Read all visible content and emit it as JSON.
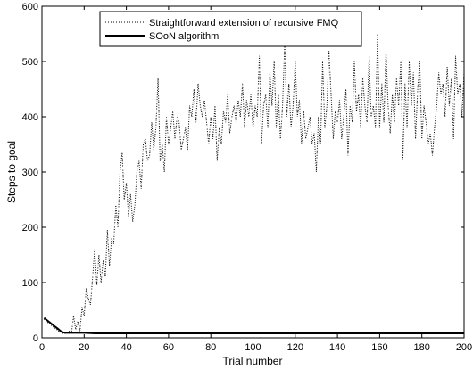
{
  "chart_data": {
    "type": "line",
    "title": "",
    "xlabel": "Trial number",
    "ylabel": "Steps to goal",
    "xlim": [
      0,
      200
    ],
    "ylim": [
      0,
      600
    ],
    "xticks": [
      0,
      20,
      40,
      60,
      80,
      100,
      120,
      140,
      160,
      180,
      200
    ],
    "yticks": [
      0,
      100,
      200,
      300,
      400,
      500,
      600
    ],
    "grid": false,
    "legend_position": "top-left",
    "series": [
      {
        "name": "Straightforward extension of recursive FMQ",
        "style": "dotted",
        "color": "#000000",
        "x": [
          1,
          2,
          3,
          4,
          5,
          6,
          7,
          8,
          9,
          10,
          11,
          12,
          13,
          14,
          15,
          16,
          17,
          18,
          19,
          20,
          21,
          22,
          23,
          24,
          25,
          26,
          27,
          28,
          29,
          30,
          31,
          32,
          33,
          34,
          35,
          36,
          37,
          38,
          39,
          40,
          41,
          42,
          43,
          44,
          45,
          46,
          47,
          48,
          49,
          50,
          51,
          52,
          53,
          54,
          55,
          56,
          57,
          58,
          59,
          60,
          61,
          62,
          63,
          64,
          65,
          66,
          67,
          68,
          69,
          70,
          71,
          72,
          73,
          74,
          75,
          76,
          77,
          78,
          79,
          80,
          81,
          82,
          83,
          84,
          85,
          86,
          87,
          88,
          89,
          90,
          91,
          92,
          93,
          94,
          95,
          96,
          97,
          98,
          99,
          100,
          101,
          102,
          103,
          104,
          105,
          106,
          107,
          108,
          109,
          110,
          111,
          112,
          113,
          114,
          115,
          116,
          117,
          118,
          119,
          120,
          121,
          122,
          123,
          124,
          125,
          126,
          127,
          128,
          129,
          130,
          131,
          132,
          133,
          134,
          135,
          136,
          137,
          138,
          139,
          140,
          141,
          142,
          143,
          144,
          145,
          146,
          147,
          148,
          149,
          150,
          151,
          152,
          153,
          154,
          155,
          156,
          157,
          158,
          159,
          160,
          161,
          162,
          163,
          164,
          165,
          166,
          167,
          168,
          169,
          170,
          171,
          172,
          173,
          174,
          175,
          176,
          177,
          178,
          179,
          180,
          181,
          182,
          183,
          184,
          185,
          186,
          187,
          188,
          189,
          190,
          191,
          192,
          193,
          194,
          195,
          196,
          197,
          198,
          199,
          200
        ],
        "y": [
          34,
          30,
          27,
          24,
          21,
          18,
          15,
          12,
          10,
          8,
          8,
          10,
          12,
          9,
          40,
          15,
          30,
          12,
          55,
          40,
          90,
          70,
          60,
          110,
          160,
          95,
          150,
          100,
          140,
          110,
          195,
          130,
          180,
          170,
          240,
          200,
          300,
          335,
          250,
          280,
          220,
          260,
          210,
          240,
          300,
          320,
          270,
          350,
          360,
          320,
          330,
          390,
          340,
          380,
          470,
          320,
          350,
          300,
          400,
          350,
          380,
          410,
          360,
          400,
          390,
          340,
          360,
          380,
          340,
          420,
          400,
          450,
          390,
          460,
          420,
          400,
          430,
          390,
          350,
          400,
          360,
          420,
          320,
          380,
          350,
          410,
          390,
          440,
          370,
          400,
          420,
          390,
          430,
          400,
          460,
          380,
          430,
          400,
          440,
          380,
          420,
          400,
          510,
          350,
          420,
          440,
          380,
          480,
          420,
          500,
          380,
          440,
          360,
          420,
          530,
          400,
          460,
          380,
          420,
          500,
          400,
          430,
          350,
          410,
          360,
          380,
          400,
          350,
          370,
          300,
          400,
          350,
          500,
          380,
          420,
          520,
          440,
          360,
          410,
          390,
          430,
          360,
          400,
          450,
          330,
          420,
          390,
          500,
          410,
          440,
          380,
          470,
          420,
          390,
          510,
          400,
          420,
          380,
          550,
          380,
          460,
          390,
          520,
          420,
          370,
          440,
          390,
          470,
          420,
          500,
          320,
          460,
          380,
          500,
          420,
          480,
          360,
          450,
          500,
          360,
          420,
          390,
          350,
          370,
          330,
          380,
          420,
          480,
          440,
          460,
          400,
          490,
          420,
          470,
          360,
          510,
          440,
          460,
          400,
          480
        ]
      },
      {
        "name": "SOoN algorithm",
        "style": "solid",
        "color": "#000000",
        "x": [
          1,
          2,
          3,
          4,
          5,
          6,
          7,
          8,
          9,
          10,
          11,
          12,
          14,
          16,
          18,
          20,
          25,
          30,
          40,
          60,
          80,
          100,
          120,
          140,
          160,
          180,
          200
        ],
        "y": [
          36,
          33,
          30,
          27,
          24,
          21,
          18,
          15,
          12,
          10,
          9,
          9,
          9,
          9,
          9,
          9,
          8,
          8,
          8,
          8,
          8,
          8,
          8,
          8,
          8,
          8,
          8
        ]
      }
    ]
  }
}
